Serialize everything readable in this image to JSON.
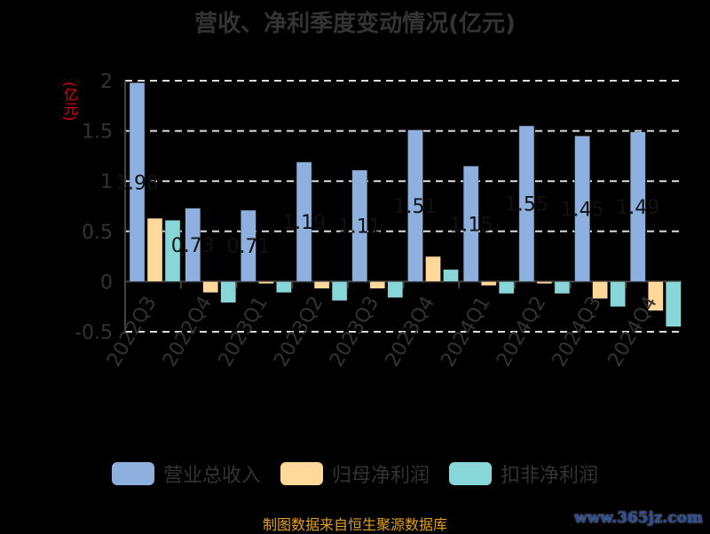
{
  "chart_data": {
    "type": "bar",
    "title": "营收、净利季度变动情况(亿元)",
    "ylabel": "(亿元)",
    "xlabel": "",
    "ylim": [
      -0.5,
      2
    ],
    "yticks": [
      "2",
      "1.5",
      "1",
      "0.5",
      "0",
      "-0.5"
    ],
    "grid": true,
    "legend_position": "bottom",
    "categories": [
      "2022Q3",
      "2022Q4",
      "2023Q1",
      "2023Q2",
      "2023Q3",
      "2023Q4",
      "2024Q1",
      "2024Q2",
      "2024Q3",
      "2024Q4"
    ],
    "series": [
      {
        "name": "营业总收入",
        "color": "#8eb0de",
        "values": [
          1.98,
          0.73,
          0.71,
          1.19,
          1.11,
          1.51,
          1.15,
          1.55,
          1.45,
          1.49
        ],
        "labels": [
          "1.98",
          "0.73",
          "0.71",
          "1.19",
          "1.11",
          "1.51",
          "1.15",
          "1.55",
          "1.45",
          "1.49"
        ]
      },
      {
        "name": "归母净利润",
        "color": "#ffd89a",
        "values": [
          0.63,
          -0.11,
          -0.02,
          -0.07,
          -0.07,
          0.25,
          -0.04,
          -0.02,
          -0.17,
          -0.29
        ]
      },
      {
        "name": "扣非净利润",
        "color": "#88d6d8",
        "values": [
          0.61,
          -0.21,
          -0.11,
          -0.19,
          -0.16,
          0.12,
          -0.12,
          -0.12,
          -0.25,
          -0.45
        ]
      }
    ]
  },
  "source": "制图数据来自恒生聚源数据库",
  "watermark": "www.365jz.com"
}
